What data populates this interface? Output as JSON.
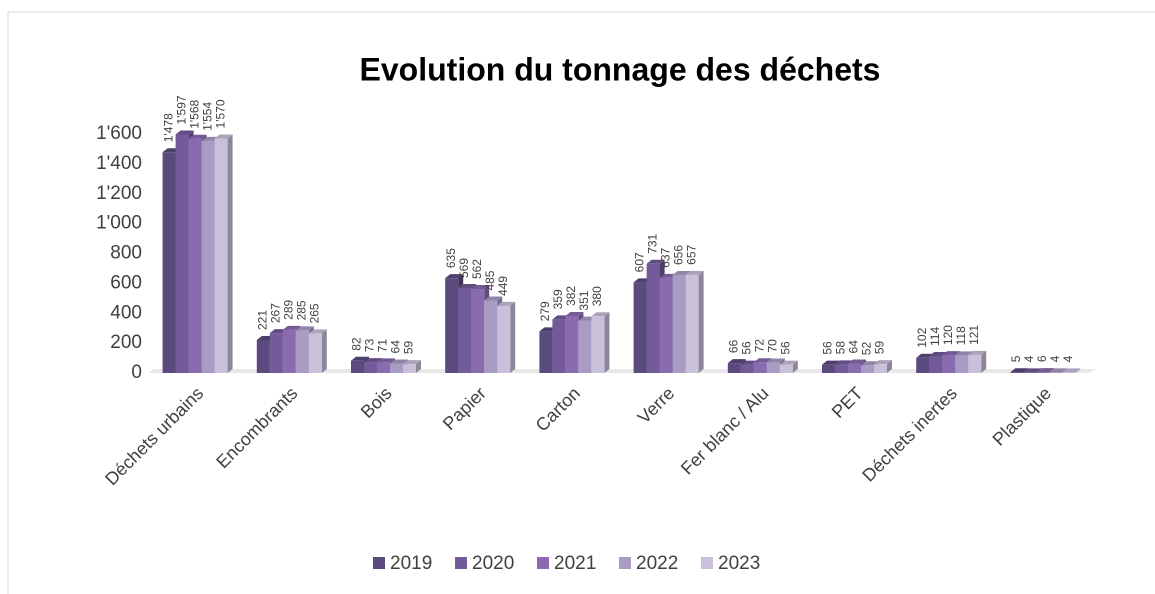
{
  "chart_data": {
    "type": "bar3d",
    "title": "Evolution du tonnage des déchets",
    "categories": [
      "Déchets urbains",
      "Encombrants",
      "Bois",
      "Papier",
      "Carton",
      "Verre",
      "Fer blanc / Alu",
      "PET",
      "Déchets inertes",
      "Plastique"
    ],
    "series": [
      {
        "name": "2019",
        "color": "#5b4a7e",
        "values": [
          1478,
          221,
          82,
          635,
          279,
          607,
          66,
          56,
          102,
          5
        ],
        "value_labels": [
          "1'478",
          "221",
          "82",
          "635",
          "279",
          "607",
          "66",
          "56",
          "102",
          "5"
        ]
      },
      {
        "name": "2020",
        "color": "#735a99",
        "values": [
          1597,
          267,
          73,
          569,
          359,
          731,
          56,
          58,
          114,
          4
        ],
        "value_labels": [
          "1'597",
          "267",
          "73",
          "569",
          "359",
          "731",
          "56",
          "58",
          "114",
          "4"
        ]
      },
      {
        "name": "2021",
        "color": "#8a6bb0",
        "values": [
          1568,
          289,
          71,
          562,
          382,
          637,
          72,
          64,
          120,
          6
        ],
        "value_labels": [
          "1'568",
          "289",
          "71",
          "562",
          "382",
          "637",
          "72",
          "64",
          "120",
          "6"
        ]
      },
      {
        "name": "2022",
        "color": "#a99cc4",
        "values": [
          1554,
          285,
          64,
          485,
          351,
          656,
          70,
          52,
          118,
          4
        ],
        "value_labels": [
          "1'554",
          "285",
          "64",
          "485",
          "351",
          "656",
          "70",
          "52",
          "118",
          "4"
        ]
      },
      {
        "name": "2023",
        "color": "#c9c0da",
        "values": [
          1570,
          265,
          59,
          449,
          380,
          657,
          56,
          59,
          121,
          4
        ],
        "value_labels": [
          "1'570",
          "265",
          "59",
          "449",
          "380",
          "657",
          "56",
          "59",
          "121",
          "4"
        ]
      }
    ],
    "ylim": [
      0,
      1600
    ],
    "yticks": [
      0,
      200,
      400,
      600,
      800,
      {
        "value": 1000,
        "label": "1'000"
      },
      {
        "value": 1200,
        "label": "1'200"
      },
      {
        "value": 1400,
        "label": "1'400"
      },
      {
        "value": 1600,
        "label": "1'600"
      }
    ],
    "grid": false,
    "legend": "bottom"
  }
}
